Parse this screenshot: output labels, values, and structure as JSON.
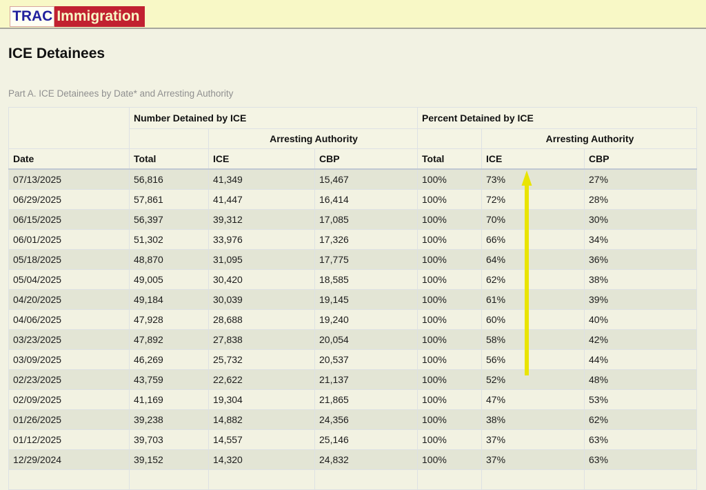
{
  "logo": {
    "trac": "TRAC",
    "immigration": "Immigration"
  },
  "page_title": "ICE Detainees",
  "subtitle": "Part A. ICE Detainees by Date* and Arresting Authority",
  "table": {
    "group_headers": {
      "number": "Number Detained by ICE",
      "percent": "Percent Detained by ICE"
    },
    "sub_headers": {
      "arresting_authority_number": "Arresting Authority",
      "arresting_authority_percent": "Arresting Authority"
    },
    "columns": [
      "Date",
      "Total",
      "ICE",
      "CBP",
      "Total",
      "ICE",
      "CBP"
    ],
    "rows": [
      [
        "07/13/2025",
        "56,816",
        "41,349",
        "15,467",
        "100%",
        "73%",
        "27%"
      ],
      [
        "06/29/2025",
        "57,861",
        "41,447",
        "16,414",
        "100%",
        "72%",
        "28%"
      ],
      [
        "06/15/2025",
        "56,397",
        "39,312",
        "17,085",
        "100%",
        "70%",
        "30%"
      ],
      [
        "06/01/2025",
        "51,302",
        "33,976",
        "17,326",
        "100%",
        "66%",
        "34%"
      ],
      [
        "05/18/2025",
        "48,870",
        "31,095",
        "17,775",
        "100%",
        "64%",
        "36%"
      ],
      [
        "05/04/2025",
        "49,005",
        "30,420",
        "18,585",
        "100%",
        "62%",
        "38%"
      ],
      [
        "04/20/2025",
        "49,184",
        "30,039",
        "19,145",
        "100%",
        "61%",
        "39%"
      ],
      [
        "04/06/2025",
        "47,928",
        "28,688",
        "19,240",
        "100%",
        "60%",
        "40%"
      ],
      [
        "03/23/2025",
        "47,892",
        "27,838",
        "20,054",
        "100%",
        "58%",
        "42%"
      ],
      [
        "03/09/2025",
        "46,269",
        "25,732",
        "20,537",
        "100%",
        "56%",
        "44%"
      ],
      [
        "02/23/2025",
        "43,759",
        "22,622",
        "21,137",
        "100%",
        "52%",
        "48%"
      ],
      [
        "02/09/2025",
        "41,169",
        "19,304",
        "21,865",
        "100%",
        "47%",
        "53%"
      ],
      [
        "01/26/2025",
        "39,238",
        "14,882",
        "24,356",
        "100%",
        "38%",
        "62%"
      ],
      [
        "01/12/2025",
        "39,703",
        "14,557",
        "25,146",
        "100%",
        "37%",
        "63%"
      ],
      [
        "12/29/2024",
        "39,152",
        "14,320",
        "24,832",
        "100%",
        "37%",
        "63%"
      ]
    ],
    "partial_next_row": [
      "",
      "",
      "",
      "",
      "",
      "",
      ""
    ]
  },
  "annotation": {
    "type": "up-arrow",
    "color": "#e9e403",
    "edge_color": "#cfca10"
  },
  "colors": {
    "topbar_bg": "#f8f8c6",
    "page_bg": "#f2f2e3",
    "logo_red": "#c12130",
    "logo_navy": "#22219e",
    "row_dark": "#e3e5d5",
    "row_light": "#f2f2e2"
  }
}
